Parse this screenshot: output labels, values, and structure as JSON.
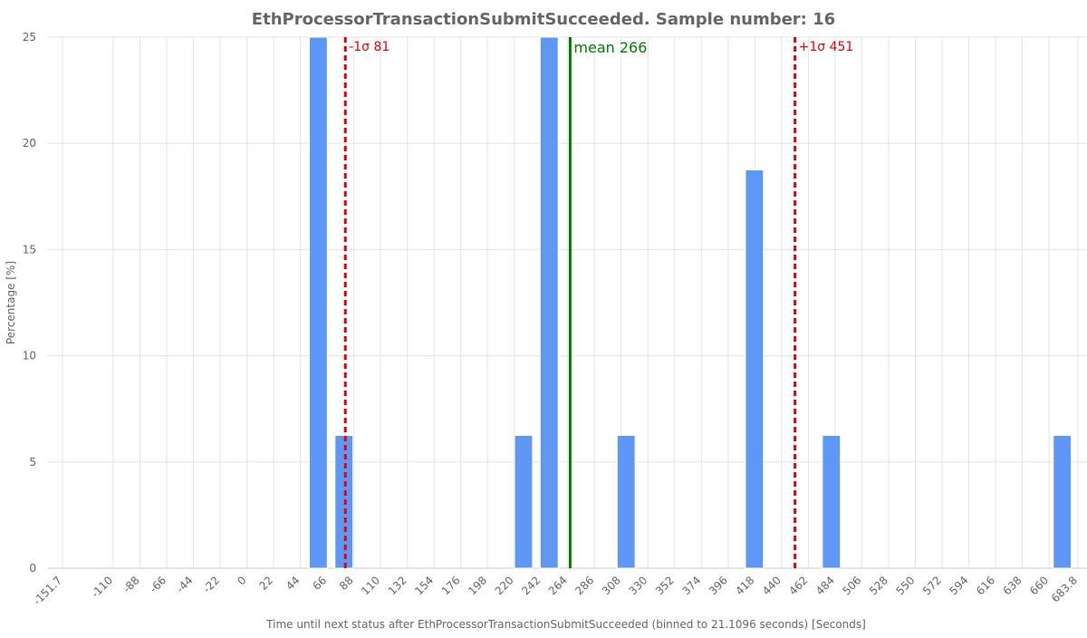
{
  "chart_data": {
    "type": "histogram",
    "title": "EthProcessorTransactionSubmitSucceeded. Sample number: 16",
    "xlabel": "Time until next status after EthProcessorTransactionSubmitSucceeded (binned to 21.1096 seconds) [Seconds]",
    "ylabel": "Percentage [%]",
    "bins": [
      48.2,
      69.31,
      90.42,
      111.53,
      132.64,
      153.75,
      174.86,
      195.97,
      217.08,
      238.19,
      259.3,
      280.41,
      301.52,
      322.63,
      343.74,
      364.85,
      385.96,
      407.07,
      428.18,
      449.29,
      470.4,
      491.51,
      512.62,
      533.73,
      554.84,
      575.95,
      597.06,
      618.17,
      639.28,
      660.39,
      681.5
    ],
    "values": [
      25,
      6.25,
      0,
      0,
      0,
      0,
      0,
      0,
      6.25,
      25,
      0,
      0,
      6.25,
      0,
      0,
      0,
      0,
      18.75,
      0,
      0,
      6.25,
      0,
      0,
      0,
      0,
      0,
      0,
      0,
      0,
      6.25
    ],
    "color": "#5e97f6",
    "xlim": [
      -164.4,
      691.3
    ],
    "xticks": [
      -151.7,
      -110,
      -88,
      -66,
      -44,
      -22,
      0,
      22,
      44,
      66,
      88,
      110,
      132,
      154,
      176,
      198,
      220,
      242,
      264,
      286,
      308,
      330,
      352,
      374,
      396,
      418,
      440,
      462,
      484,
      506,
      528,
      550,
      572,
      594,
      616,
      638,
      660,
      683.8
    ],
    "ylim": [
      0,
      25
    ],
    "yticks": [
      0,
      5,
      10,
      15,
      20,
      25
    ],
    "grid": true,
    "vlines": [
      {
        "x": 81,
        "label": "-1σ 81",
        "color": "#ee0000",
        "style": "dashed"
      },
      {
        "x": 266,
        "label": "mean 266",
        "color": "#008000",
        "style": "solid"
      },
      {
        "x": 451,
        "label": "+1σ 451",
        "color": "#ee0000",
        "style": "dashed"
      }
    ]
  }
}
